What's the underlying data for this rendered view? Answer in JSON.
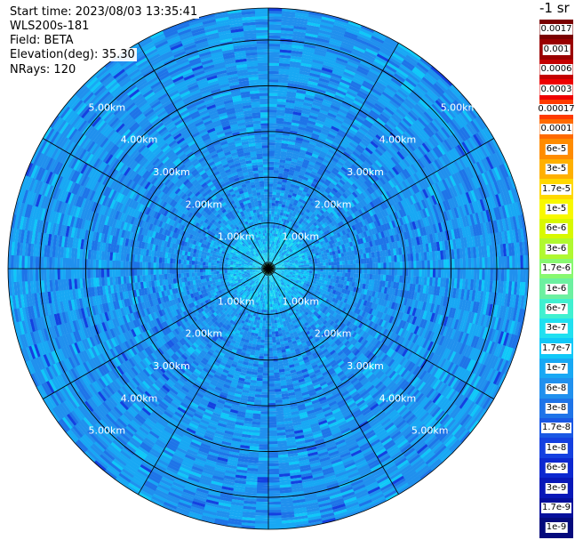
{
  "header": {
    "start_time": "Start time: 2023/08/03 13:35:41",
    "instrument": "WLS200s-181",
    "field": "Field: BETA",
    "elevation": "Elevation(deg): 35.30",
    "nrays": "NRays: 120"
  },
  "units_label": "-1 sr",
  "chart_data": {
    "type": "heatmap",
    "projection": "polar PPI",
    "field": "BETA",
    "n_rays": 120,
    "range_rings_km": [
      1,
      2,
      3,
      4,
      5
    ],
    "range_ring_labels": [
      "1.00km",
      "2.00km",
      "3.00km",
      "4.00km",
      "5.00km"
    ],
    "max_range_km": 5.7,
    "spokes_deg": [
      0,
      30,
      60,
      90,
      120,
      150,
      180,
      210,
      240,
      270,
      300,
      330
    ],
    "colorbar": {
      "labels": [
        "0.0017",
        "0.001",
        "0.0006",
        "0.0003",
        "0.00017",
        "0.0001",
        "6e-5",
        "3e-5",
        "1.7e-5",
        "1e-5",
        "6e-6",
        "3e-6",
        "1.7e-6",
        "1e-6",
        "6e-7",
        "3e-7",
        "1.7e-7",
        "1e-7",
        "6e-8",
        "3e-8",
        "1.7e-8",
        "1e-8",
        "6e-9",
        "3e-9",
        "1.7e-9",
        "1e-9"
      ],
      "colors": [
        "#7a0000",
        "#9a0000",
        "#c40000",
        "#ee0000",
        "#ff3a00",
        "#ff6a00",
        "#ff8c00",
        "#ffb000",
        "#ffd800",
        "#f8f800",
        "#d8f800",
        "#b0f830",
        "#88f870",
        "#6cf0a0",
        "#40f0d0",
        "#20e0f0",
        "#10c8f8",
        "#18a8f4",
        "#2090ee",
        "#1e74e8",
        "#1a58e4",
        "#1440e0",
        "#0c28d0",
        "#0818b8",
        "#06109c",
        "#040a7c"
      ]
    },
    "value_distribution": "near center (< 1 km) values around 1e-7 to 6e-8 (cyan/green-cyan); beyond 1 km mostly 1.7e-8 to 6e-8 (blue), with scattered 1e-7 (light blue)"
  }
}
